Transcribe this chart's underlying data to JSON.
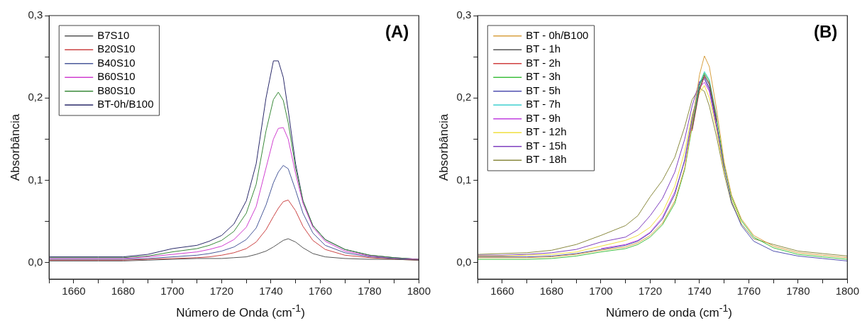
{
  "chart_data": [
    {
      "type": "line",
      "annotations": [
        "(A)"
      ],
      "xlabel": "Número de Onda (cm$^{-1}$)",
      "ylabel": "Absorbância",
      "legend": "top left",
      "xlim": [
        1650,
        1800
      ],
      "ylim": [
        -0.02,
        0.3
      ],
      "xticks": [
        {
          "value": 1650,
          "label": null
        },
        1660,
        {
          "value": 1670,
          "label": null
        },
        1680,
        {
          "value": 1690,
          "label": null
        },
        1700,
        {
          "value": 1710,
          "label": null
        },
        1720,
        {
          "value": 1730,
          "label": null
        },
        1740,
        {
          "value": 1750,
          "label": null
        },
        1760,
        {
          "value": 1770,
          "label": null
        },
        1780,
        {
          "value": 1790,
          "label": null
        },
        1800
      ],
      "yticks": [
        {
          "value": 0,
          "label": "0,0"
        },
        {
          "value": 0.05,
          "label": null
        },
        {
          "value": 0.1,
          "label": "0,1"
        },
        {
          "value": 0.15,
          "label": null
        },
        {
          "value": 0.2,
          "label": "0,2"
        },
        {
          "value": 0.25,
          "label": null
        },
        {
          "value": 0.3,
          "label": "0,3"
        }
      ],
      "x": [
        1650,
        1660,
        1670,
        1680,
        1690,
        1700,
        1710,
        1715,
        1720,
        1725,
        1730,
        1734,
        1738,
        1741,
        1743,
        1745,
        1747,
        1750,
        1753,
        1757,
        1762,
        1770,
        1780,
        1790,
        1800
      ],
      "series": [
        {
          "name": "B7S10",
          "color": "#555555",
          "values": [
            0.002,
            0.002,
            0.002,
            0.002,
            0.003,
            0.004,
            0.005,
            0.005,
            0.005,
            0.006,
            0.007,
            0.01,
            0.014,
            0.019,
            0.023,
            0.027,
            0.029,
            0.025,
            0.018,
            0.011,
            0.007,
            0.005,
            0.004,
            0.004,
            0.003
          ]
        },
        {
          "name": "B20S10",
          "color": "#cc4444",
          "values": [
            0.003,
            0.003,
            0.003,
            0.003,
            0.004,
            0.005,
            0.006,
            0.007,
            0.009,
            0.012,
            0.017,
            0.025,
            0.04,
            0.056,
            0.066,
            0.074,
            0.076,
            0.063,
            0.044,
            0.027,
            0.016,
            0.009,
            0.006,
            0.004,
            0.003
          ]
        },
        {
          "name": "B40S10",
          "color": "#4a5a9a",
          "values": [
            0.004,
            0.004,
            0.004,
            0.004,
            0.005,
            0.007,
            0.009,
            0.011,
            0.014,
            0.019,
            0.028,
            0.042,
            0.07,
            0.097,
            0.11,
            0.118,
            0.114,
            0.088,
            0.06,
            0.036,
            0.021,
            0.012,
            0.007,
            0.005,
            0.003
          ]
        },
        {
          "name": "B60S10",
          "color": "#d040d0",
          "values": [
            0.005,
            0.005,
            0.005,
            0.005,
            0.007,
            0.01,
            0.013,
            0.016,
            0.02,
            0.028,
            0.043,
            0.068,
            0.115,
            0.15,
            0.163,
            0.164,
            0.15,
            0.108,
            0.072,
            0.043,
            0.026,
            0.014,
            0.008,
            0.005,
            0.004
          ]
        },
        {
          "name": "B80S10",
          "color": "#3a8a3a",
          "values": [
            0.006,
            0.006,
            0.006,
            0.006,
            0.008,
            0.013,
            0.017,
            0.021,
            0.027,
            0.038,
            0.06,
            0.095,
            0.16,
            0.198,
            0.207,
            0.197,
            0.17,
            0.115,
            0.075,
            0.045,
            0.028,
            0.016,
            0.009,
            0.006,
            0.004
          ]
        },
        {
          "name": "BT-0h/B100",
          "color": "#2a2a6a",
          "values": [
            0.007,
            0.007,
            0.007,
            0.007,
            0.01,
            0.017,
            0.021,
            0.026,
            0.033,
            0.047,
            0.075,
            0.12,
            0.2,
            0.245,
            0.245,
            0.225,
            0.185,
            0.12,
            0.075,
            0.045,
            0.028,
            0.016,
            0.009,
            0.006,
            0.004
          ]
        }
      ]
    },
    {
      "type": "line",
      "annotations": [
        "(B)"
      ],
      "xlabel": "Número de onda (cm$^{-1}$)",
      "ylabel": "Absorbância",
      "legend": "top left",
      "xlim": [
        1650,
        1800
      ],
      "ylim": [
        -0.02,
        0.3
      ],
      "xticks": [
        {
          "value": 1650,
          "label": null
        },
        1660,
        {
          "value": 1670,
          "label": null
        },
        1680,
        {
          "value": 1690,
          "label": null
        },
        1700,
        {
          "value": 1710,
          "label": null
        },
        1720,
        {
          "value": 1730,
          "label": null
        },
        1740,
        {
          "value": 1750,
          "label": null
        },
        1760,
        {
          "value": 1770,
          "label": null
        },
        1780,
        {
          "value": 1790,
          "label": null
        },
        1800
      ],
      "yticks": [
        {
          "value": 0,
          "label": "0,0"
        },
        {
          "value": 0.05,
          "label": null
        },
        {
          "value": 0.1,
          "label": "0,1"
        },
        {
          "value": 0.15,
          "label": null
        },
        {
          "value": 0.2,
          "label": "0,2"
        },
        {
          "value": 0.25,
          "label": null
        },
        {
          "value": 0.3,
          "label": "0,3"
        }
      ],
      "x": [
        1650,
        1660,
        1670,
        1680,
        1690,
        1700,
        1710,
        1715,
        1720,
        1725,
        1730,
        1734,
        1737,
        1740,
        1742,
        1744,
        1747,
        1750,
        1753,
        1757,
        1762,
        1770,
        1780,
        1790,
        1800
      ],
      "series": [
        {
          "name": "BT - 0h/B100",
          "color": "#d8a040",
          "values": [
            0.006,
            0.006,
            0.006,
            0.007,
            0.01,
            0.015,
            0.019,
            0.024,
            0.033,
            0.048,
            0.075,
            0.115,
            0.168,
            0.228,
            0.251,
            0.238,
            0.185,
            0.122,
            0.082,
            0.053,
            0.033,
            0.02,
            0.012,
            0.009,
            0.006
          ]
        },
        {
          "name": "BT - 1h",
          "color": "#555555",
          "values": [
            null,
            null,
            null,
            null,
            null,
            null,
            null,
            null,
            null,
            null,
            null,
            null,
            0.162,
            0.211,
            0.228,
            0.216,
            0.171,
            null,
            null,
            null,
            null,
            null,
            null,
            null,
            null
          ]
        },
        {
          "name": "BT - 2h",
          "color": "#d04040",
          "values": [
            null,
            null,
            null,
            null,
            null,
            null,
            null,
            null,
            null,
            null,
            null,
            null,
            0.16,
            0.209,
            0.226,
            0.218,
            0.173,
            null,
            null,
            null,
            null,
            null,
            null,
            null,
            null
          ]
        },
        {
          "name": "BT - 3h",
          "color": "#40c040",
          "values": [
            0.004,
            0.004,
            0.004,
            0.005,
            0.008,
            0.013,
            0.017,
            0.022,
            0.031,
            0.046,
            0.072,
            0.113,
            0.165,
            0.215,
            0.23,
            0.22,
            0.175,
            0.12,
            0.08,
            0.051,
            0.031,
            0.018,
            0.01,
            0.007,
            0.004
          ]
        },
        {
          "name": "BT - 5h",
          "color": "#5050b0",
          "values": [
            0.007,
            0.007,
            0.007,
            0.008,
            0.011,
            0.016,
            0.021,
            0.026,
            0.036,
            0.053,
            0.083,
            0.125,
            0.175,
            0.218,
            0.225,
            0.212,
            0.168,
            0.115,
            0.074,
            0.045,
            0.026,
            0.014,
            0.008,
            0.005,
            0.002
          ]
        },
        {
          "name": "BT - 7h",
          "color": "#40d0d0",
          "values": [
            null,
            null,
            null,
            null,
            null,
            null,
            null,
            null,
            null,
            null,
            null,
            null,
            0.167,
            0.217,
            0.232,
            0.222,
            0.177,
            null,
            null,
            null,
            null,
            null,
            null,
            null,
            null
          ]
        },
        {
          "name": "BT - 9h",
          "color": "#c040e0",
          "values": [
            null,
            null,
            null,
            null,
            null,
            0.017,
            0.022,
            0.027,
            0.037,
            0.055,
            0.086,
            0.123,
            0.172,
            0.213,
            0.219,
            0.208,
            0.166,
            0.117,
            null,
            null,
            null,
            null,
            null,
            null,
            null
          ]
        },
        {
          "name": "BT - 12h",
          "color": "#f0e040",
          "values": [
            0.008,
            0.008,
            0.009,
            0.01,
            0.013,
            0.02,
            0.027,
            0.033,
            0.043,
            0.061,
            0.093,
            0.135,
            0.18,
            0.206,
            0.215,
            0.2,
            0.16,
            0.111,
            0.077,
            0.048,
            null,
            null,
            null,
            null,
            null
          ]
        },
        {
          "name": "BT - 15h",
          "color": "#8040c0",
          "values": [
            0.009,
            0.009,
            0.01,
            0.012,
            0.016,
            0.025,
            0.031,
            0.04,
            0.057,
            0.078,
            0.11,
            0.15,
            0.19,
            0.22,
            0.223,
            0.21,
            0.163,
            0.113,
            null,
            null,
            null,
            null,
            null,
            null,
            null
          ]
        },
        {
          "name": "BT - 18h",
          "color": "#8a8a40",
          "values": [
            0.01,
            0.011,
            0.012,
            0.015,
            0.022,
            0.033,
            0.045,
            0.057,
            0.08,
            0.1,
            0.128,
            0.165,
            0.198,
            0.212,
            0.208,
            0.19,
            0.152,
            0.108,
            0.072,
            0.047,
            0.029,
            0.022,
            0.014,
            0.011,
            0.008
          ]
        }
      ]
    }
  ]
}
